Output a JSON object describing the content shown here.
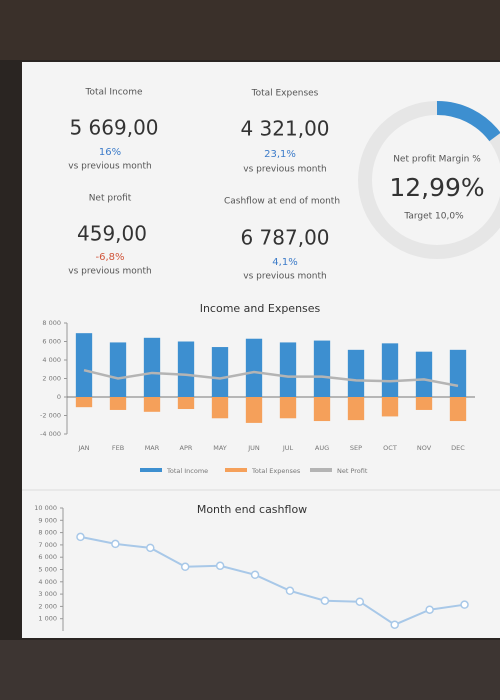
{
  "kpis": [
    {
      "title": "Total Income",
      "value": "5 669,00",
      "change": "16%",
      "note": "vs previous month"
    },
    {
      "title": "Total Expenses",
      "value": "4 321,00",
      "change": "23,1%",
      "note": "vs previous month"
    },
    {
      "title": "Net profit",
      "value": "459,00",
      "change": "-6,8%",
      "note": "vs previous month"
    },
    {
      "title": "Cashflow at end of month",
      "value": "6 787,00",
      "change": "4,1%",
      "note": "vs previous month"
    }
  ],
  "margin": {
    "title": "Net profit Margin %",
    "value": "12,99%",
    "target": "Target 10,0%"
  },
  "chart_data": [
    {
      "type": "bar",
      "title": "Income and Expenses",
      "categories": [
        "JAN",
        "FEB",
        "MAR",
        "APR",
        "MAY",
        "JUN",
        "JUL",
        "AUG",
        "SEP",
        "OCT",
        "NOV",
        "DEC"
      ],
      "series": [
        {
          "name": "Total Income",
          "color": "#3d8fd0",
          "values": [
            6900,
            5900,
            6400,
            6000,
            5400,
            6300,
            5900,
            6100,
            5100,
            5800,
            4900,
            5100
          ]
        },
        {
          "name": "Total Expenses",
          "color": "#f5a05a",
          "values": [
            -1100,
            -1400,
            -1600,
            -1300,
            -2300,
            -2800,
            -2300,
            -2600,
            -2500,
            -2100,
            -1400,
            -2600
          ]
        },
        {
          "name": "Net Profit",
          "color": "#b4b4b4",
          "type": "line",
          "values": [
            2900,
            2000,
            2600,
            2400,
            2000,
            2700,
            2200,
            2200,
            1800,
            1700,
            1900,
            1200
          ]
        }
      ],
      "ylim": [
        -4000,
        8000
      ],
      "yticks": [
        {
          "value": -4000,
          "label": "-4 000"
        },
        {
          "value": -2000,
          "label": "-2 000"
        },
        0,
        {
          "value": 2000,
          "label": "2 000"
        },
        {
          "value": 4000,
          "label": "4 000"
        },
        {
          "value": 6000,
          "label": "6 000"
        },
        {
          "value": 8000,
          "label": "8 000"
        }
      ]
    },
    {
      "type": "line",
      "title": "Month end cashflow",
      "categories": [
        null,
        null,
        null,
        null,
        null,
        null,
        null,
        null,
        null,
        null,
        null,
        null
      ],
      "series": [
        {
          "color": "#a8c8e8",
          "values": [
            7650,
            7080,
            6760,
            5220,
            5300,
            4570,
            3270,
            2460,
            2380,
            510,
            1730,
            2140
          ]
        }
      ],
      "ylim": [
        0,
        10000
      ],
      "yticks": [
        {
          "value": 1000,
          "label": "1 000"
        },
        {
          "value": 2000,
          "label": "2 000"
        },
        {
          "value": 3000,
          "label": "3 000"
        },
        {
          "value": 4000,
          "label": "4 000"
        },
        {
          "value": 5000,
          "label": "5 000"
        },
        {
          "value": 6000,
          "label": "6 000"
        },
        {
          "value": 7000,
          "label": "7 000"
        },
        {
          "value": 8000,
          "label": "8 000"
        },
        {
          "value": 9000,
          "label": "9 000"
        },
        {
          "value": 10000,
          "label": "10 000"
        }
      ]
    }
  ]
}
